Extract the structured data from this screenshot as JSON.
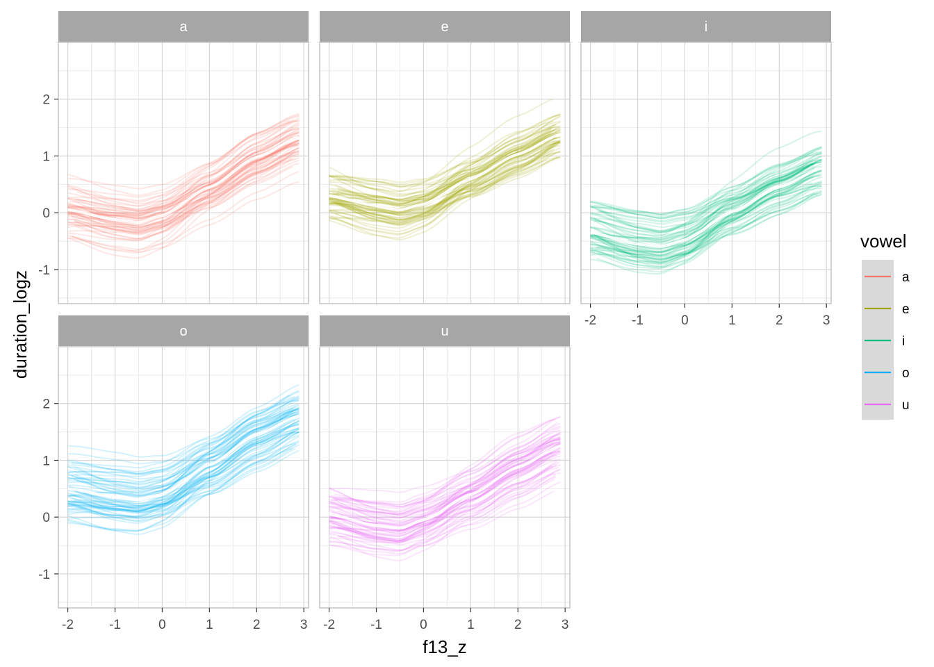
{
  "chart_data": {
    "type": "line",
    "facet_by": "vowel",
    "xlabel": "f13_z",
    "ylabel": "duration_logz",
    "xlim": [
      -2.2,
      3.1
    ],
    "ylim": [
      -1.6,
      3.0
    ],
    "x_ticks": [
      -2,
      -1,
      0,
      1,
      2,
      3
    ],
    "y_ticks": [
      -1,
      0,
      1,
      2
    ],
    "x_tick_labels": [
      "-2",
      "-1",
      "0",
      "1",
      "2",
      "3"
    ],
    "y_tick_labels": [
      "-1",
      "0",
      "1",
      "2"
    ],
    "mean_curve_x": [
      -2.0,
      -1.0,
      -0.5,
      0.0,
      1.0,
      2.0,
      2.9
    ],
    "legend": {
      "title": "vowel",
      "entries": [
        {
          "label": "a",
          "color": "#F8766D"
        },
        {
          "label": "e",
          "color": "#A3A500"
        },
        {
          "label": "i",
          "color": "#00BF7D"
        },
        {
          "label": "o",
          "color": "#00B0F6"
        },
        {
          "label": "u",
          "color": "#E76BF3"
        }
      ]
    },
    "panels": [
      {
        "strip": "a",
        "color": "#F8766D",
        "mean_curve_y": [
          0.05,
          -0.12,
          -0.17,
          -0.05,
          0.45,
          0.98,
          1.33
        ],
        "spread": 0.32,
        "n_lines": 65,
        "seed": 11
      },
      {
        "strip": "e",
        "color": "#A3A500",
        "mean_curve_y": [
          0.3,
          0.12,
          0.05,
          0.15,
          0.6,
          1.03,
          1.38
        ],
        "spread": 0.28,
        "n_lines": 65,
        "seed": 23
      },
      {
        "strip": "i",
        "color": "#00BF7D",
        "mean_curve_y": [
          -0.35,
          -0.55,
          -0.6,
          -0.48,
          0.02,
          0.45,
          0.78
        ],
        "spread": 0.3,
        "n_lines": 65,
        "seed": 37
      },
      {
        "strip": "o",
        "color": "#00B0F6",
        "mean_curve_y": [
          0.5,
          0.35,
          0.3,
          0.4,
          0.92,
          1.45,
          1.78
        ],
        "spread": 0.38,
        "n_lines": 65,
        "seed": 41
      },
      {
        "strip": "u",
        "color": "#E76BF3",
        "mean_curve_y": [
          0.05,
          -0.15,
          -0.2,
          -0.05,
          0.4,
          0.88,
          1.25
        ],
        "spread": 0.34,
        "n_lines": 65,
        "seed": 53
      }
    ]
  }
}
